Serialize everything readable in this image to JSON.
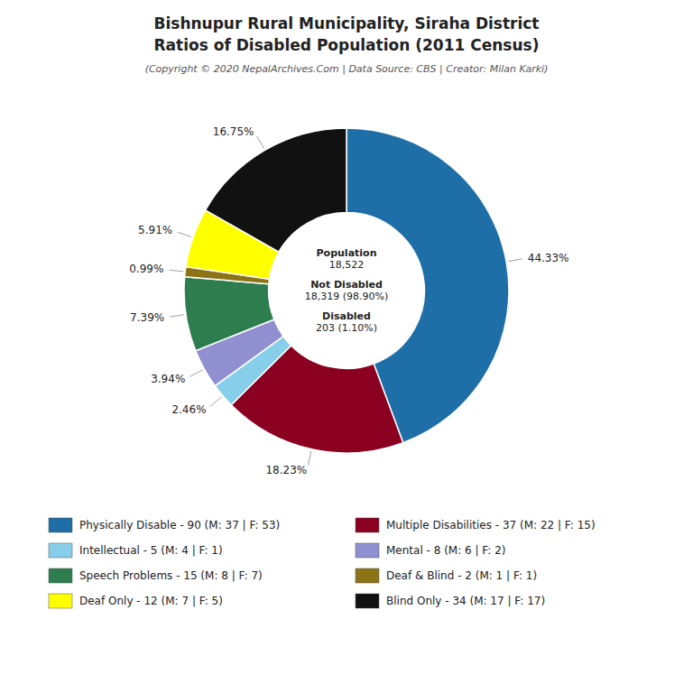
{
  "chart_data": {
    "type": "donut",
    "title": [
      "Bishnupur Rural Municipality, Siraha District",
      "Ratios of Disabled Population (2011 Census)"
    ],
    "subtitle": "(Copyright © 2020 NepalArchives.Com | Data Source: CBS | Creator: Milan Karki)",
    "categories": [
      "Physically Disable - 90 (M: 37 | F: 53)",
      "Multiple Disabilities - 37 (M: 22 | F: 15)",
      "Intellectual - 5 (M: 4 | F: 1)",
      "Mental - 8 (M: 6 | F: 2)",
      "Speech Problems - 15 (M: 8 | F: 7)",
      "Deaf & Blind - 2 (M: 1 | F: 1)",
      "Deaf Only - 12 (M: 7 | F: 5)",
      "Blind Only - 34 (M: 17 | F: 17)"
    ],
    "values": [
      44.33,
      18.23,
      2.46,
      3.94,
      7.39,
      0.99,
      5.91,
      16.75
    ],
    "value_labels": [
      "44.33%",
      "18.23%",
      "2.46%",
      "3.94%",
      "7.39%",
      "0.99%",
      "5.91%",
      "16.75%"
    ],
    "colors": [
      "#1e6fa8",
      "#8b0020",
      "#87ceeb",
      "#9090d0",
      "#2e7d4f",
      "#8b7316",
      "#ffff00",
      "#111111"
    ],
    "data_labels": true,
    "legend": "bottom",
    "annotations": [
      "Population",
      "18,522",
      "Not Disabled",
      "18,319 (98.90%)",
      "Disabled",
      "203 (1.10%)"
    ]
  }
}
